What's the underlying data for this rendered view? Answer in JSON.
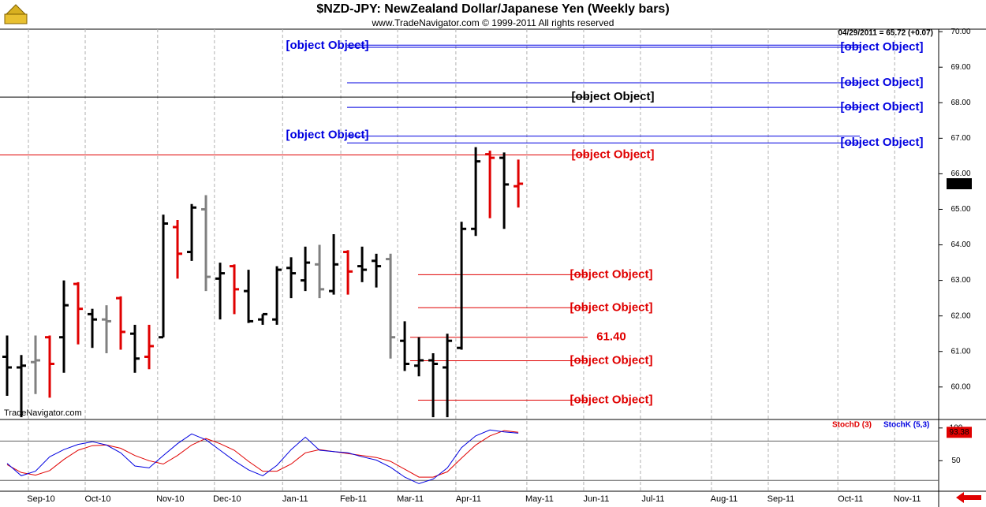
{
  "chart_data": [
    {
      "type": "ohlc",
      "title": "$NZD-JPY:  NewZealand Dollar/Japanese Yen  (Weekly bars)",
      "subtitle": "www.TradeNavigator.com © 1999-2011 All rights reserved",
      "info": "04/29/2011 = 65.72 (+0.07)",
      "watermark": "TradeNavigator.com",
      "last_value": 65.72,
      "open": [
        60.85,
        60.55,
        60.7,
        61.4,
        61.4,
        62.9,
        62.05,
        61.9,
        62.5,
        61.5,
        60.85,
        61.4,
        64.5,
        63.8,
        65.0,
        63.05,
        63.4,
        62.7,
        61.9,
        61.9,
        63.35,
        63.0,
        63.45,
        62.7,
        63.8,
        63.4,
        63.55,
        63.6,
        61.3,
        60.6,
        60.75,
        60.55,
        61.1,
        64.45,
        66.55,
        66.45,
        65.65
      ],
      "high": [
        61.45,
        60.9,
        61.45,
        61.45,
        63.0,
        62.95,
        62.2,
        62.3,
        62.55,
        61.75,
        61.75,
        64.85,
        64.7,
        65.15,
        65.4,
        63.5,
        63.45,
        63.3,
        62.05,
        63.4,
        63.65,
        63.95,
        64.0,
        64.3,
        63.85,
        63.95,
        63.75,
        63.75,
        61.85,
        61.4,
        60.95,
        61.5,
        64.65,
        66.75,
        66.65,
        66.6,
        66.4
      ],
      "low": [
        59.75,
        59.15,
        59.8,
        59.7,
        60.4,
        61.2,
        61.1,
        60.95,
        61.05,
        60.4,
        60.5,
        61.4,
        63.05,
        63.55,
        62.7,
        61.9,
        62.05,
        61.8,
        61.75,
        61.75,
        62.5,
        62.7,
        62.5,
        62.6,
        62.6,
        62.95,
        62.8,
        60.8,
        60.45,
        60.3,
        59.15,
        59.15,
        61.05,
        64.25,
        64.75,
        64.45,
        65.05
      ],
      "close": [
        60.55,
        60.6,
        60.75,
        60.65,
        62.3,
        62.2,
        61.9,
        61.85,
        61.55,
        60.8,
        61.15,
        64.6,
        63.75,
        65.05,
        63.1,
        63.2,
        62.75,
        61.85,
        62.05,
        63.3,
        63.2,
        63.5,
        62.75,
        63.45,
        63.25,
        63.3,
        63.4,
        61.4,
        60.65,
        60.75,
        60.65,
        61.3,
        64.45,
        66.35,
        66.45,
        65.7,
        65.72
      ],
      "bar_colors": [
        "#000000",
        "#000000",
        "#808080",
        "#e00000",
        "#000000",
        "#e00000",
        "#000000",
        "#808080",
        "#e00000",
        "#000000",
        "#e00000",
        "#000000",
        "#e00000",
        "#000000",
        "#808080",
        "#000000",
        "#e00000",
        "#000000",
        "#000000",
        "#000000",
        "#000000",
        "#000000",
        "#808080",
        "#000000",
        "#e00000",
        "#000000",
        "#000000",
        "#808080",
        "#000000",
        "#000000",
        "#000000",
        "#000000",
        "#000000",
        "#000000",
        "#e00000",
        "#000000",
        "#e00000"
      ],
      "levels": [
        {
          "value": 69.62,
          "color": "#0000e0"
        },
        {
          "value": 69.56,
          "color": "#0000e0"
        },
        {
          "value": 68.56,
          "color": "#0000e0"
        },
        {
          "value": 68.16,
          "color": "#000000"
        },
        {
          "value": 67.87,
          "color": "#0000e0"
        },
        {
          "value": 67.06,
          "color": "#0000e0"
        },
        {
          "value": 66.87,
          "color": "#0000e0"
        },
        {
          "value": 66.53,
          "color": "#e00000"
        },
        {
          "value": 63.16,
          "color": "#e00000"
        },
        {
          "value": 62.23,
          "color": "#e00000"
        },
        {
          "value": 61.4,
          "label": "61.40",
          "color": "#e00000"
        },
        {
          "value": 60.74,
          "color": "#e00000"
        },
        {
          "value": 59.63,
          "color": "#e00000"
        }
      ],
      "xlim": [
        -0.5,
        65.6
      ],
      "xticks": [
        {
          "value": 1.5,
          "label": "Sep-10"
        },
        {
          "value": 5.5,
          "label": "Oct-10"
        },
        {
          "value": 10.6,
          "label": "Nov-10"
        },
        {
          "value": 14.6,
          "label": "Dec-10"
        },
        {
          "value": 19.4,
          "label": "Jan-11"
        },
        {
          "value": 23.5,
          "label": "Feb-11"
        },
        {
          "value": 27.5,
          "label": "Mar-11"
        },
        {
          "value": 31.6,
          "label": "Apr-11"
        },
        {
          "value": 36.6,
          "label": "May-11"
        },
        {
          "value": 40.6,
          "label": "Jun-11"
        },
        {
          "value": 44.6,
          "label": "Jul-11"
        },
        {
          "value": 49.6,
          "label": "Aug-11"
        },
        {
          "value": 53.6,
          "label": "Sep-11"
        },
        {
          "value": 58.5,
          "label": "Oct-11"
        },
        {
          "value": 62.5,
          "label": "Nov-11"
        }
      ],
      "ylim": [
        59.13,
        70.07
      ],
      "yticks": [
        {
          "value": 60,
          "label": "60.00"
        },
        {
          "value": 61,
          "label": "61.00"
        },
        {
          "value": 62,
          "label": "62.00"
        },
        {
          "value": 63,
          "label": "63.00"
        },
        {
          "value": 64,
          "label": "64.00"
        },
        {
          "value": 65,
          "label": "65.00"
        },
        {
          "value": 66,
          "label": "66.00"
        },
        {
          "value": 67,
          "label": "67.00"
        },
        {
          "value": 68,
          "label": "68.00"
        },
        {
          "value": 69,
          "label": "69.00"
        },
        {
          "value": 70,
          "label": "70.00"
        }
      ]
    },
    {
      "type": "line",
      "series": [
        {
          "name": "StochD (3)",
          "color": "#e00000",
          "values": [
            44,
            32,
            28,
            35,
            52,
            66,
            73,
            74,
            69,
            58,
            50,
            45,
            58,
            74,
            84,
            76,
            66,
            49,
            34,
            34,
            45,
            62,
            67,
            64,
            61,
            58,
            55,
            49,
            37,
            25,
            25,
            33,
            54,
            74,
            88,
            96,
            93.38
          ]
        },
        {
          "name": "StochK (5,3)",
          "color": "#0000e0",
          "values": [
            46,
            27,
            34,
            56,
            67,
            75,
            79,
            74,
            62,
            42,
            39,
            58,
            76,
            91,
            82,
            66,
            50,
            36,
            27,
            43,
            67,
            86,
            66,
            64,
            62,
            56,
            51,
            40,
            25,
            15,
            22,
            39,
            70,
            88,
            97,
            94,
            92
          ]
        }
      ],
      "last_value": 93.38,
      "ref_lines": [
        20,
        80
      ],
      "ylim": [
        1,
        113
      ],
      "yticks": [
        50,
        100
      ]
    }
  ]
}
